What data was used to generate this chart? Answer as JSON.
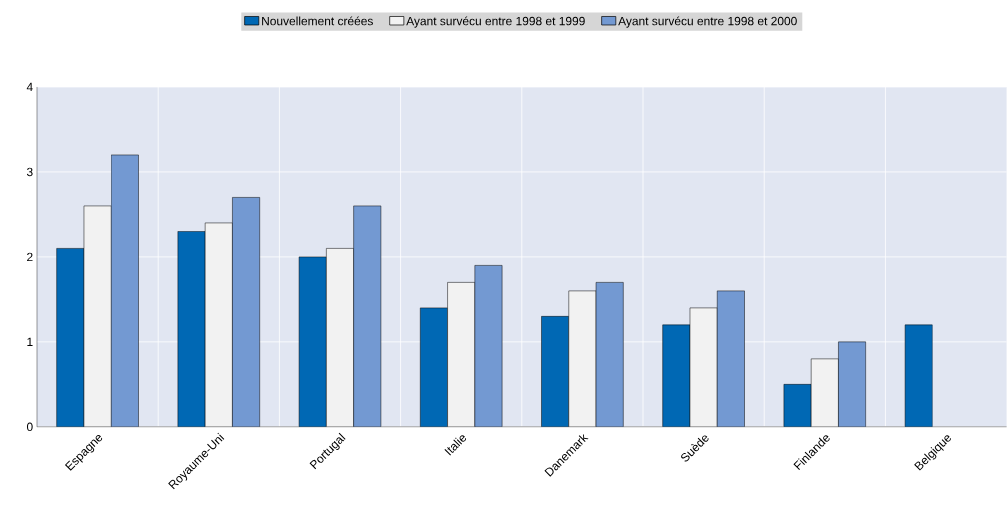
{
  "chart_data": {
    "type": "bar",
    "categories": [
      "Espagne",
      "Royaume-Uni",
      "Portugal",
      "Italie",
      "Danemark",
      "Suède",
      "Finlande",
      "Belgique"
    ],
    "series": [
      {
        "name": "Nouvellement créées",
        "color": "#0068b4",
        "values": [
          2.1,
          2.3,
          2.0,
          1.4,
          1.3,
          1.2,
          0.5,
          1.2
        ]
      },
      {
        "name": "Ayant survécu entre 1998 et 1999",
        "color": "#f2f2f2",
        "values": [
          2.6,
          2.4,
          2.1,
          1.7,
          1.6,
          1.4,
          0.8,
          null
        ]
      },
      {
        "name": "Ayant survécu entre 1998 et 2000",
        "color": "#7399d2",
        "values": [
          3.2,
          2.7,
          2.6,
          1.9,
          1.7,
          1.6,
          1.0,
          null
        ]
      }
    ],
    "ylim": [
      0,
      4
    ],
    "yticks": [
      0,
      1,
      2,
      3,
      4
    ],
    "grid": true,
    "legend": "top"
  }
}
